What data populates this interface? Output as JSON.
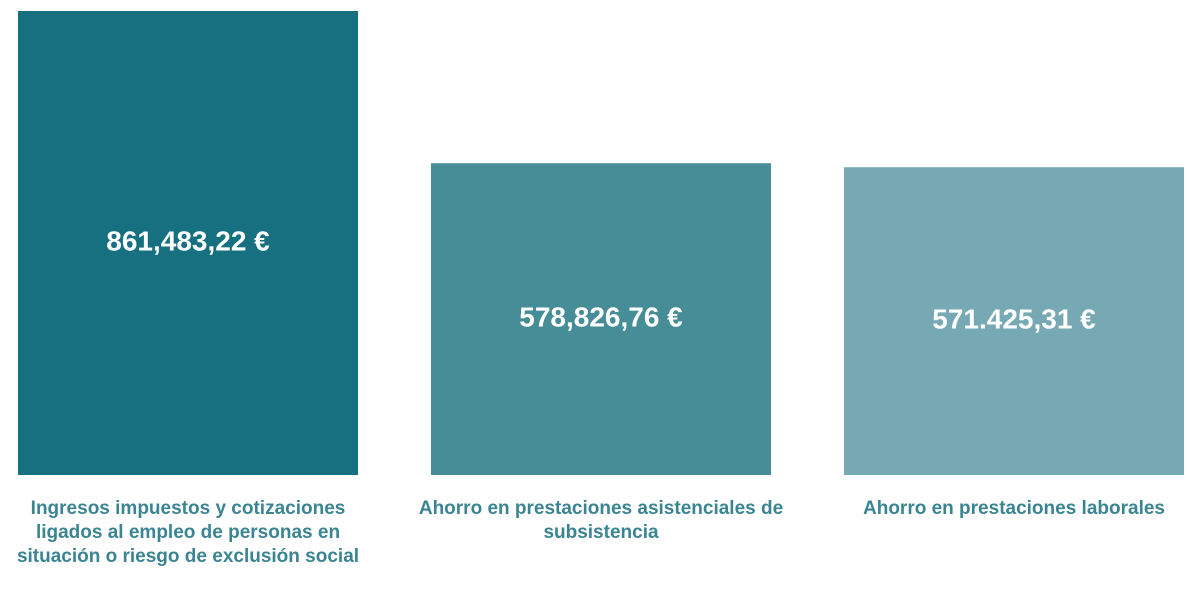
{
  "chart_data": {
    "type": "bar",
    "categories": [
      "Ingresos impuestos y cotizaciones ligados al empleo de personas en situación o riesgo de exclusión social",
      "Ahorro en prestaciones asistenciales de subsistencia",
      "Ahorro en prestaciones laborales"
    ],
    "values": [
      861483.22,
      578826.76,
      571425.31
    ],
    "value_labels": [
      "861,483,22 €",
      "578,826,76 €",
      "571.425,31 €"
    ],
    "colors": [
      "#17707f",
      "#478d97",
      "#76a9b3"
    ]
  }
}
